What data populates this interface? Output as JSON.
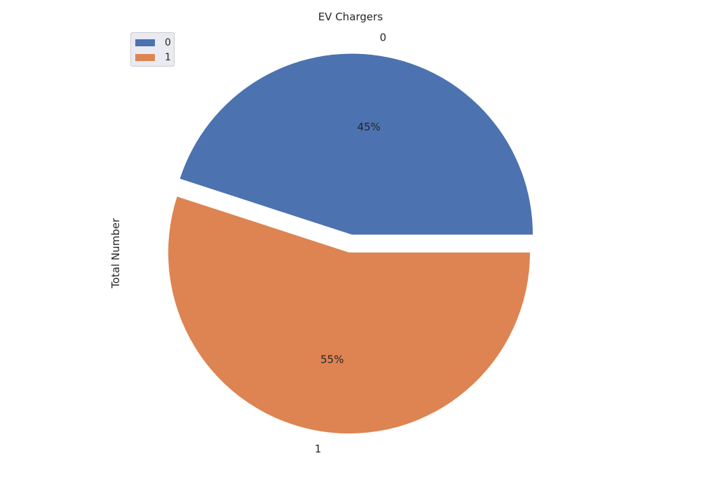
{
  "chart_data": {
    "type": "pie",
    "title": "EV Chargers",
    "ylabel": "Total Number",
    "categories": [
      "0",
      "1"
    ],
    "values": [
      45,
      55
    ],
    "value_labels": [
      "45%",
      "55%"
    ],
    "colors": [
      "#4c72b0",
      "#dd8452"
    ],
    "explode": [
      0.1,
      0
    ],
    "start_angle_deg": 0,
    "direction": "counterclockwise",
    "legend": {
      "position": "top-left",
      "entries": [
        "0",
        "1"
      ]
    }
  }
}
